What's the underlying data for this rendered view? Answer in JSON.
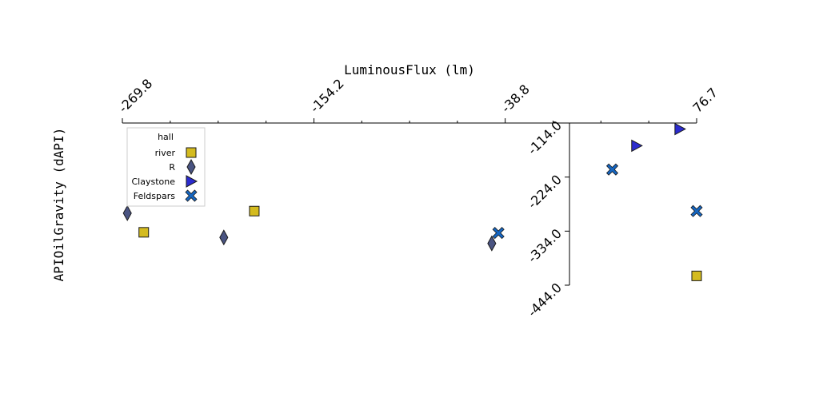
{
  "chart_data": {
    "type": "scatter",
    "title": "",
    "xlabel": "LuminousFlux (lm)",
    "ylabel": "APIOilGravity (dAPI)",
    "xlim": [
      -269.8,
      76.7
    ],
    "ylim": [
      -444.0,
      -114.0
    ],
    "xticks": [
      -269.8,
      -154.2,
      -38.8,
      76.7
    ],
    "xtick_labels": [
      "-269.8",
      "-154.2",
      "-38.8",
      "76.7"
    ],
    "yticks": [
      -114.0,
      -224.0,
      -334.0,
      -444.0
    ],
    "ytick_labels": [
      "-114.0",
      "-224.0",
      "-334.0",
      "-444.0"
    ],
    "x_axis_position": "top",
    "y_axis_at_x": 0,
    "grid": false,
    "legend": {
      "title": "hall",
      "position": "upper-left"
    },
    "series": [
      {
        "name": "river",
        "marker": "square",
        "color": "#d4bb1f",
        "points": [
          [
            -256.9,
            -336.4
          ],
          [
            -190.2,
            -293.2
          ],
          [
            76.7,
            -425.1
          ]
        ]
      },
      {
        "name": "R",
        "marker": "diamond",
        "color": "#4a5482",
        "points": [
          [
            -266.8,
            -297.4
          ],
          [
            -46.9,
            -359.0
          ],
          [
            -208.6,
            -346.9
          ]
        ]
      },
      {
        "name": "Claystone",
        "marker": "triangle-right",
        "color": "#2b2bcf",
        "points": [
          [
            -234.0,
            -226.4
          ],
          [
            66.5,
            -126.2
          ],
          [
            40.4,
            -160.2
          ]
        ]
      },
      {
        "name": "Feldspars",
        "marker": "x",
        "color": "#1565c0",
        "points": [
          [
            -42.9,
            -337.7
          ],
          [
            25.8,
            -208.6
          ],
          [
            80.7,
            -293.2
          ]
        ]
      }
    ]
  }
}
